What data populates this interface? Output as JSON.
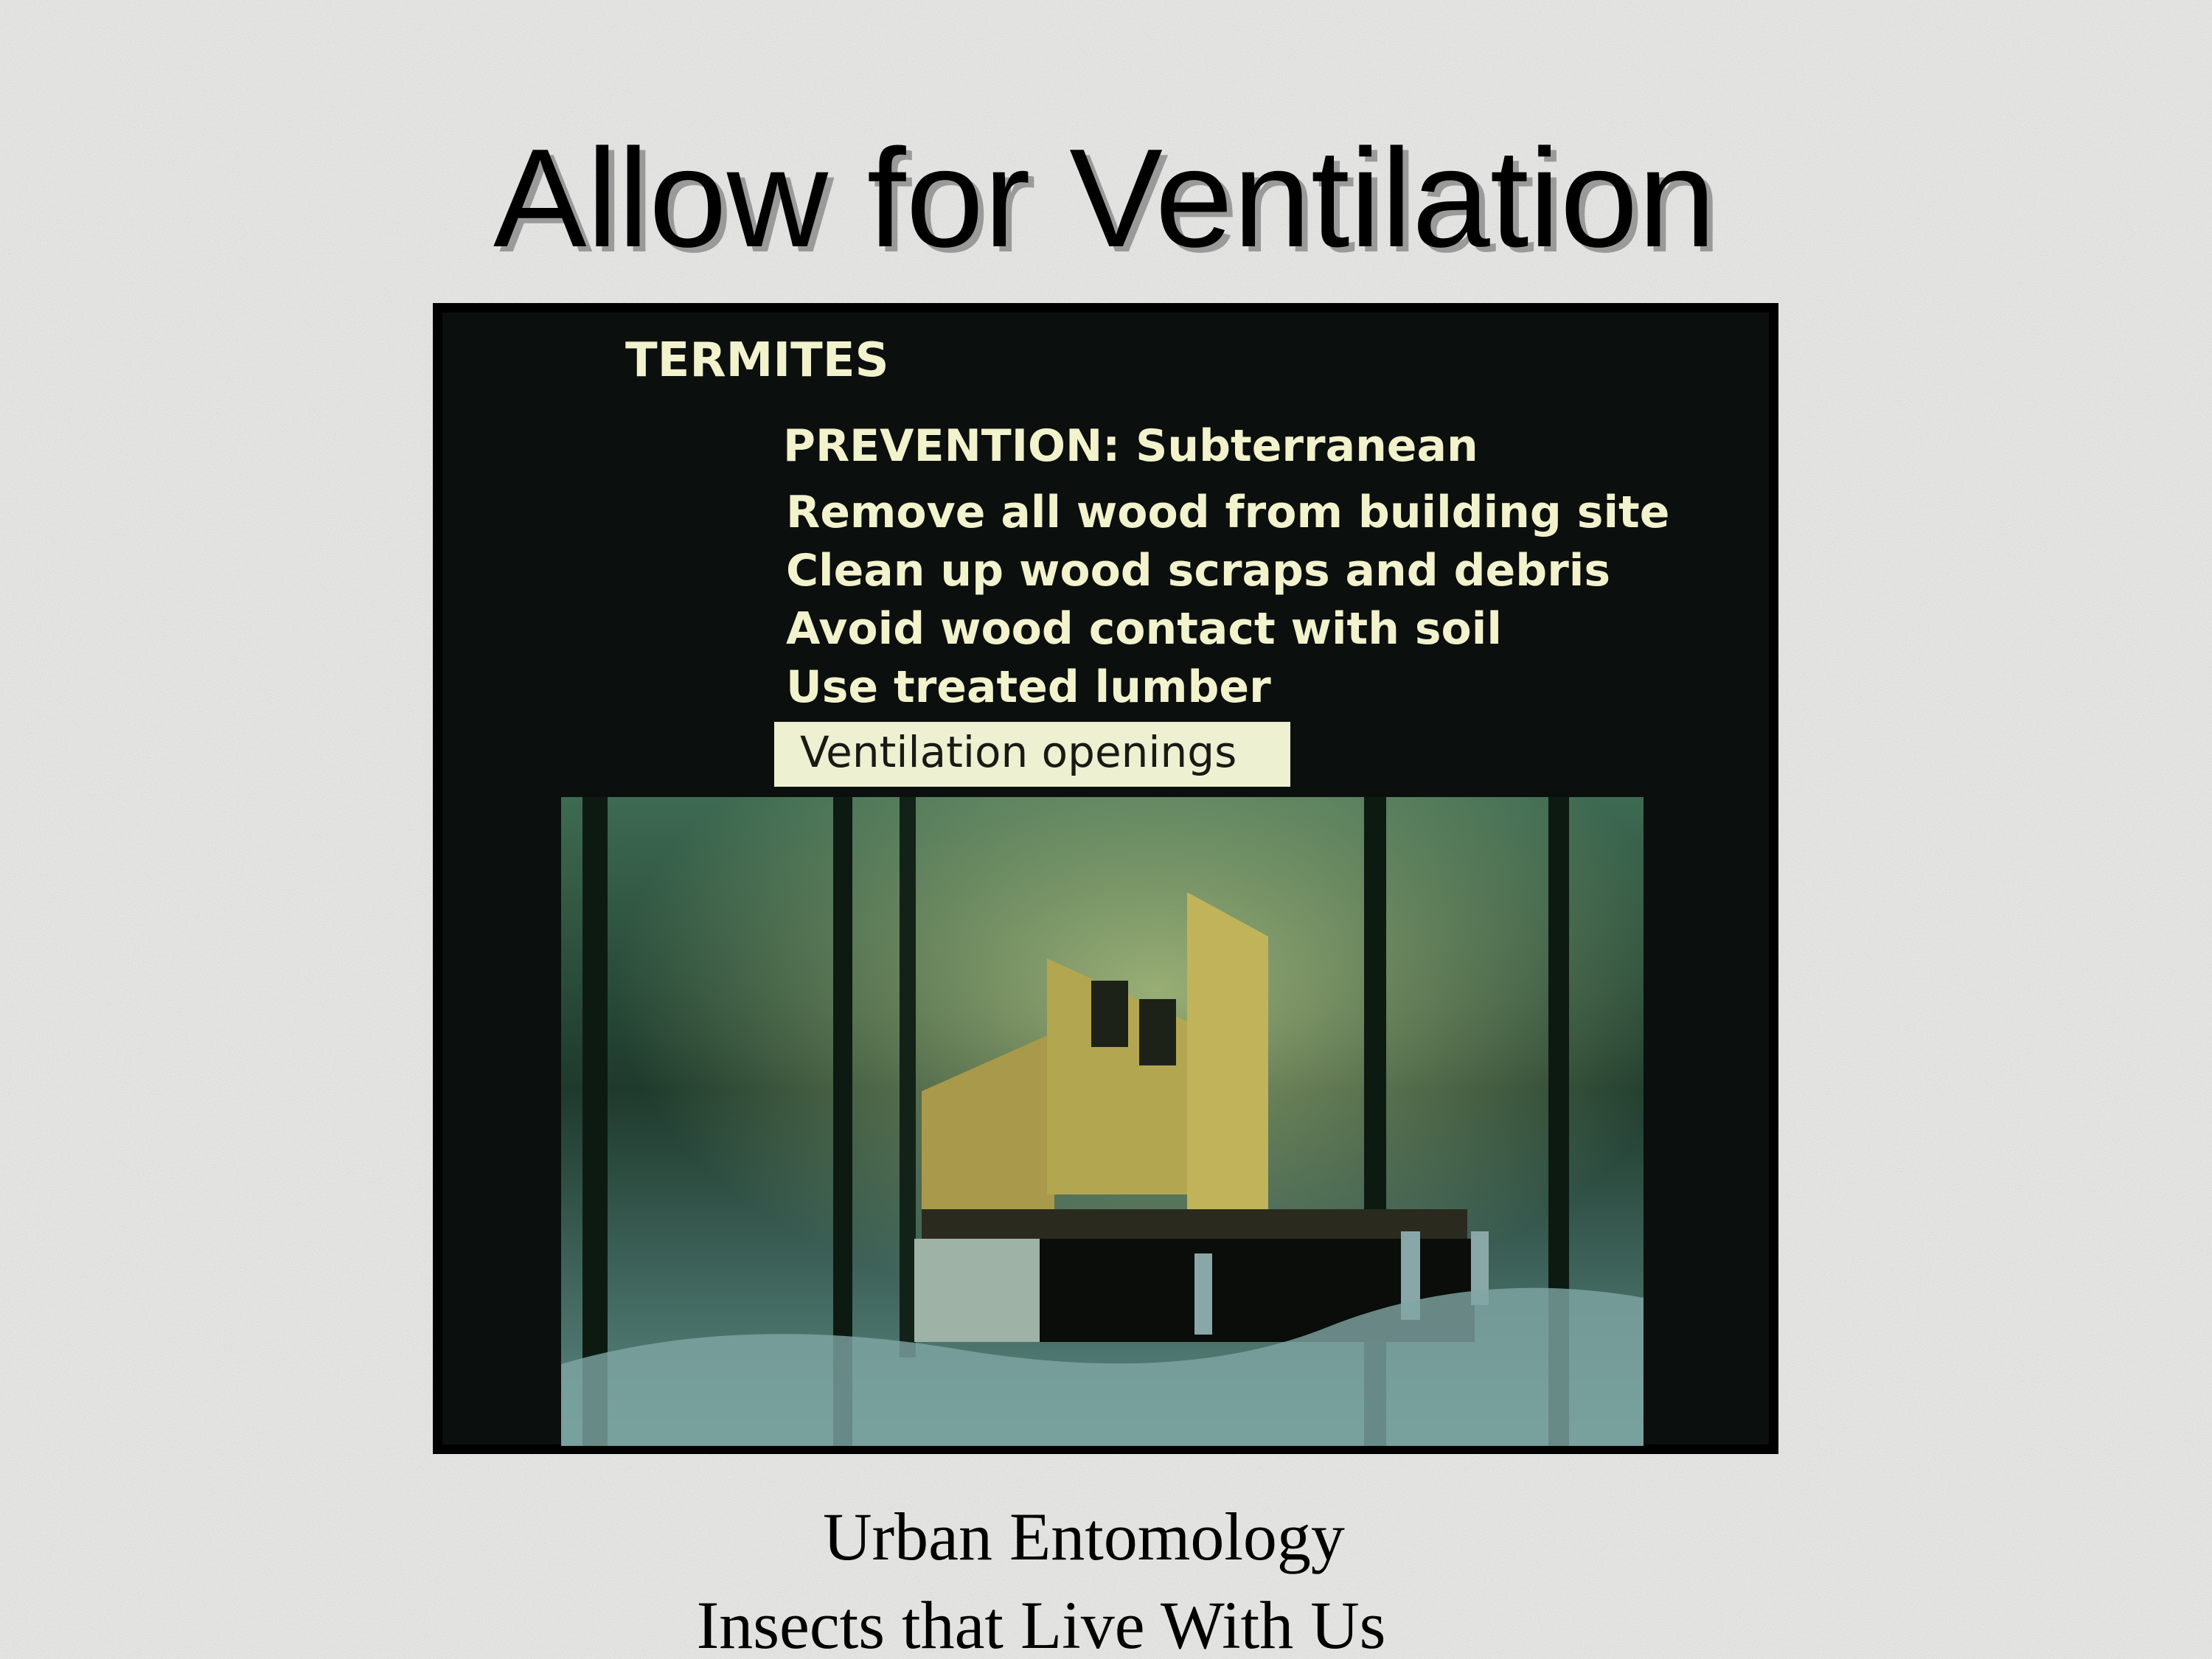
{
  "title": "Allow for Ventilation",
  "slide_image": {
    "heading": "TERMITES",
    "subheading": "PREVENTION: Subterranean",
    "items": [
      "Remove all wood from building site",
      "Clean up wood scraps and debris",
      "Avoid wood contact with soil",
      "Use treated lumber"
    ],
    "highlight": "Ventilation openings"
  },
  "footer": {
    "lines": [
      "Urban Entomology",
      "Insects that Live With Us"
    ]
  }
}
